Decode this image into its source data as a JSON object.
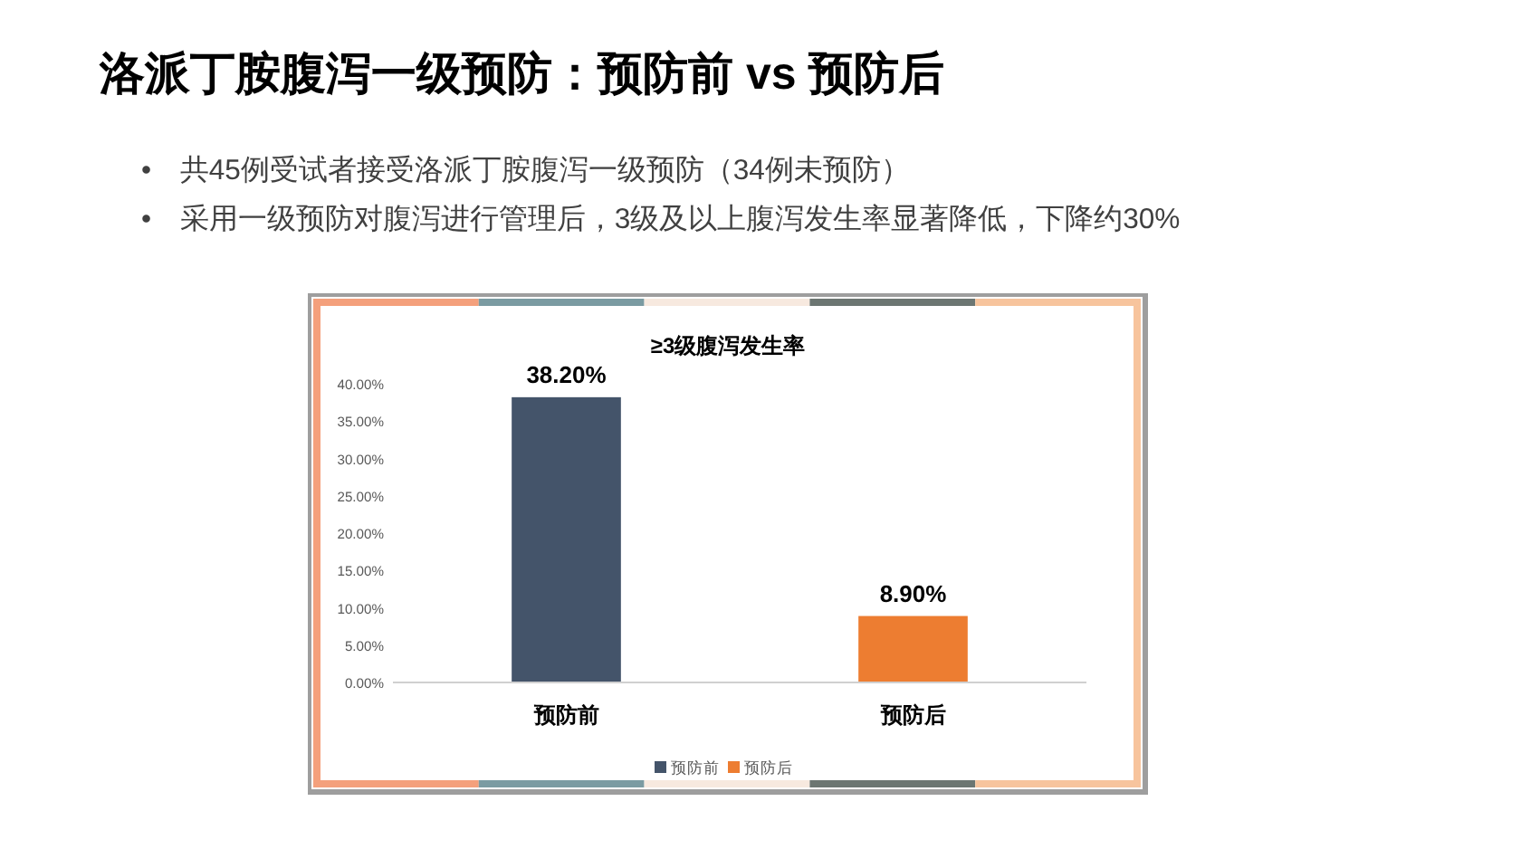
{
  "chart_data": {
    "type": "bar",
    "title": "洛派丁胺腹泻一级预防：预防前 vs 预防后",
    "subtitle": "≥3级腹泻发生率",
    "annotations": [
      "• 共45例受试者接受洛派丁胺腹泻一级预防（34例未预防）",
      "• 采用一级预防对腹泻进行管理后，3级及以上腹泻发生率显著降低，下降约30%"
    ],
    "categories": [
      "预防前",
      "预防后"
    ],
    "series": [
      {
        "name": "预防前",
        "color": "#44546a",
        "values": [
          38.2,
          null
        ],
        "value_labels": [
          "38.20%",
          null
        ]
      },
      {
        "name": "预防后",
        "color": "#ed7d31",
        "values": [
          null,
          8.9
        ],
        "value_labels": [
          null,
          "8.90%"
        ]
      }
    ],
    "ylim": [
      0,
      40
    ],
    "yticks": [
      {
        "value": 0,
        "label": "0.00%"
      },
      {
        "value": 5,
        "label": "5.00%"
      },
      {
        "value": 10,
        "label": "10.00%"
      },
      {
        "value": 15,
        "label": "15.00%"
      },
      {
        "value": 20,
        "label": "20.00%"
      },
      {
        "value": 25,
        "label": "25.00%"
      },
      {
        "value": 30,
        "label": "30.00%"
      },
      {
        "value": 35,
        "label": "35.00%"
      },
      {
        "value": 40,
        "label": "40.00%"
      }
    ],
    "legend": "bottom"
  }
}
